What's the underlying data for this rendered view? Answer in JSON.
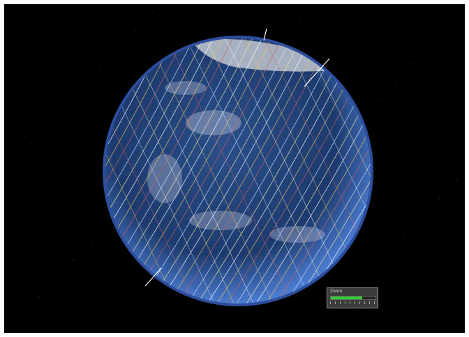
{
  "panel": {
    "title": "Zoom"
  }
}
